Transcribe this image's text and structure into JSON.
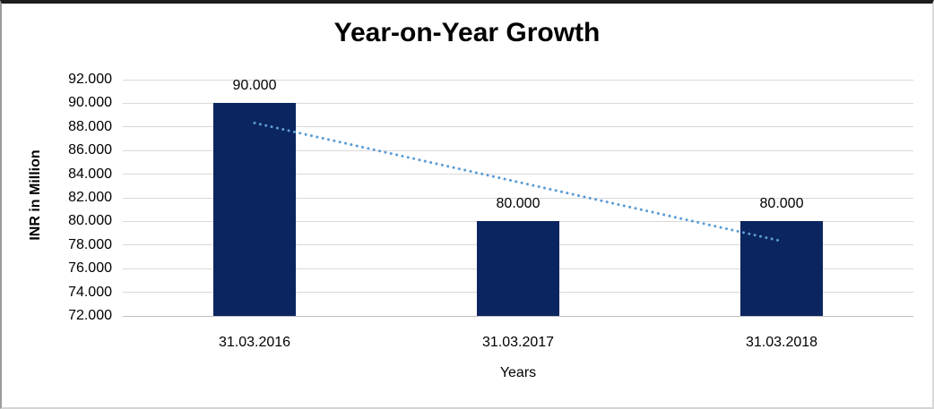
{
  "chart_data": {
    "type": "bar",
    "title": "Year-on-Year Growth",
    "categories": [
      "31.03.2016",
      "31.03.2017",
      "31.03.2018"
    ],
    "values": [
      90000,
      80000,
      80000
    ],
    "value_labels": [
      "90.000",
      "80.000",
      "80.000"
    ],
    "xlabel": "Years",
    "ylabel": "INR in Million",
    "ylim": [
      72000,
      92000
    ],
    "ytick_step": 2000,
    "ytick_labels": [
      "72.000",
      "74.000",
      "76.000",
      "78.000",
      "80.000",
      "82.000",
      "84.000",
      "86.000",
      "88.000",
      "90.000",
      "92.000"
    ],
    "grid": "horizontal",
    "legend": "none",
    "colors": {
      "bar": "#0b2560",
      "trendline": "#5b9bd5",
      "gridline": "#d9d9d9",
      "axis_line": "#bfbfbf",
      "text": "#000000"
    },
    "trendline": {
      "type": "linear",
      "style": "dotted"
    }
  }
}
